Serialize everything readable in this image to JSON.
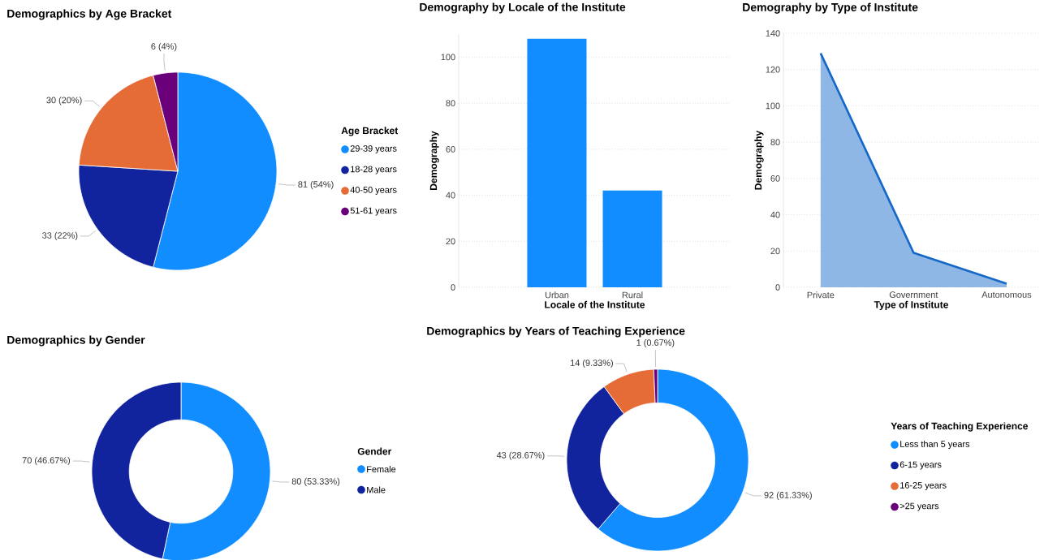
{
  "chart_data": [
    {
      "type": "pie",
      "title": "Demographics by Age Bracket",
      "legend_title": "Age Bracket",
      "legend": "right",
      "categories": [
        "29-39 years",
        "18-28 years",
        "40-50 years",
        "51-61 years"
      ],
      "values": [
        81,
        33,
        30,
        6
      ],
      "value_labels": [
        "81 (54%)",
        "33 (22%)",
        "30 (20%)",
        "6 (4%)"
      ],
      "colors": [
        "#118DFF",
        "#12239E",
        "#E66C37",
        "#6B007B"
      ]
    },
    {
      "type": "bar",
      "title": "Demography by Locale of the Institute",
      "xlabel": "Locale of the Institute",
      "ylabel": "Demography",
      "categories": [
        "Urban",
        "Rural"
      ],
      "values": [
        108,
        42
      ],
      "color": "#118DFF",
      "ylim": [
        0,
        110
      ],
      "yticks": [
        0,
        20,
        40,
        60,
        80,
        100
      ],
      "grid": "y"
    },
    {
      "type": "area",
      "title": "Demography by Type of Institute",
      "xlabel": "Type of Institute",
      "ylabel": "Demography",
      "categories": [
        "Private",
        "Government",
        "Autonomous"
      ],
      "values": [
        129,
        19,
        2
      ],
      "color": "#1668C8",
      "ylim": [
        0,
        140
      ],
      "yticks": [
        0,
        20,
        40,
        60,
        80,
        100,
        120,
        140
      ],
      "grid": "y"
    },
    {
      "type": "donut",
      "title": "Demographics by Gender",
      "legend_title": "Gender",
      "legend": "right",
      "categories": [
        "Female",
        "Male"
      ],
      "values": [
        80,
        70
      ],
      "value_labels": [
        "80 (53.33%)",
        "70 (46.67%)"
      ],
      "colors": [
        "#118DFF",
        "#12239E"
      ]
    },
    {
      "type": "donut",
      "title": "Demographics by Years of Teaching Experience",
      "legend_title": "Years of Teaching Experience",
      "legend": "right",
      "categories": [
        "Less than 5 years",
        "6-15 years",
        "16-25 years",
        ">25 years"
      ],
      "values": [
        92,
        43,
        14,
        1
      ],
      "value_labels": [
        "92 (61.33%)",
        "43 (28.67%)",
        "14 (9.33%)",
        "1 (0.67%)"
      ],
      "colors": [
        "#118DFF",
        "#12239E",
        "#E66C37",
        "#6B007B"
      ]
    }
  ]
}
